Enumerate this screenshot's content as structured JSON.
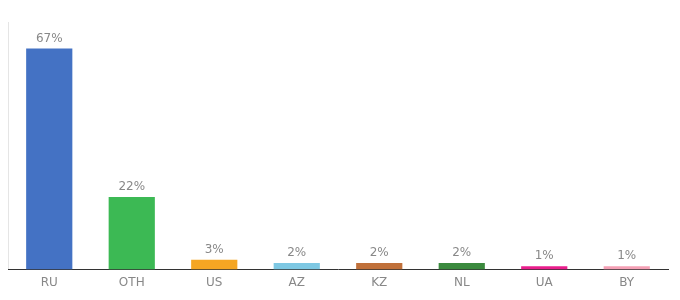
{
  "chart_data": {
    "type": "bar",
    "categories": [
      "RU",
      "OTH",
      "US",
      "AZ",
      "KZ",
      "NL",
      "UA",
      "BY"
    ],
    "values": [
      67,
      22,
      3,
      2,
      2,
      2,
      1,
      1
    ],
    "value_labels": [
      "67%",
      "22%",
      "3%",
      "2%",
      "2%",
      "2%",
      "1%",
      "1%"
    ],
    "colors": [
      "#4472c4",
      "#3cb954",
      "#f5a623",
      "#7ec8e3",
      "#c0703a",
      "#3b8a3e",
      "#e91e8c",
      "#f4a0b5"
    ],
    "ylim": [
      0,
      75
    ],
    "data_labels": true,
    "tick_labels": "x",
    "grid": false
  }
}
